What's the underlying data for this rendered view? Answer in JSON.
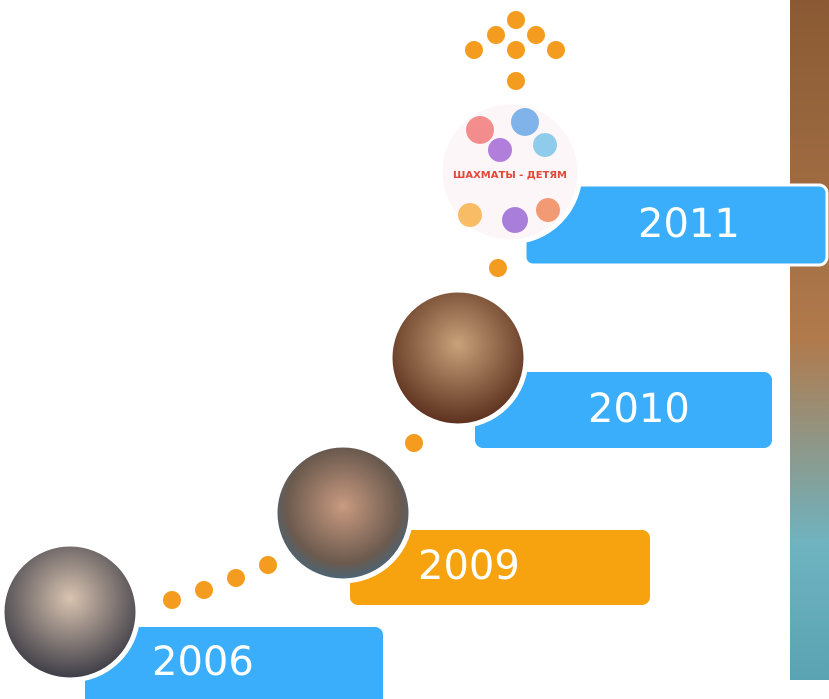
{
  "timeline": {
    "items": [
      {
        "year": "2006"
      },
      {
        "year": "2009"
      },
      {
        "year": "2010"
      },
      {
        "year": "2011"
      }
    ]
  },
  "logo": {
    "title": "ШАХМАТЫ - ДЕТЯМ"
  }
}
